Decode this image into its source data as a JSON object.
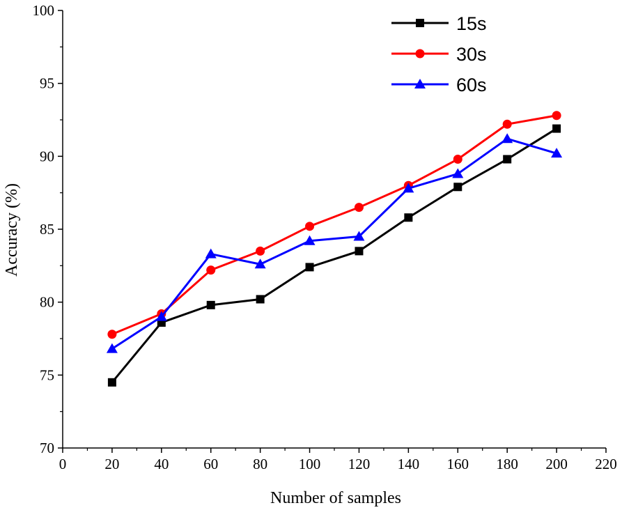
{
  "chart_data": {
    "type": "line",
    "title": "",
    "xlabel": "Number of samples",
    "ylabel": "Accuracy (%)",
    "xlim": [
      0,
      220
    ],
    "ylim": [
      70,
      100
    ],
    "xticks": [
      0,
      20,
      40,
      60,
      80,
      100,
      120,
      140,
      160,
      180,
      200,
      220
    ],
    "yticks": [
      70,
      75,
      80,
      85,
      90,
      95,
      100
    ],
    "x": [
      20,
      40,
      60,
      80,
      100,
      120,
      140,
      160,
      180,
      200
    ],
    "grid": false,
    "legend_position": "top-right",
    "series": [
      {
        "name": "15s",
        "color": "#000000",
        "marker": "square",
        "values": [
          74.5,
          78.6,
          79.8,
          80.2,
          82.4,
          83.5,
          85.8,
          87.9,
          89.8,
          91.9
        ]
      },
      {
        "name": "30s",
        "color": "#ff0000",
        "marker": "circle",
        "values": [
          77.8,
          79.2,
          82.2,
          83.5,
          85.2,
          86.5,
          88.0,
          89.8,
          92.2,
          92.8
        ]
      },
      {
        "name": "60s",
        "color": "#0000ff",
        "marker": "triangle",
        "values": [
          76.8,
          79.0,
          83.3,
          82.6,
          84.2,
          84.5,
          87.8,
          88.8,
          91.2,
          90.2
        ]
      }
    ]
  }
}
